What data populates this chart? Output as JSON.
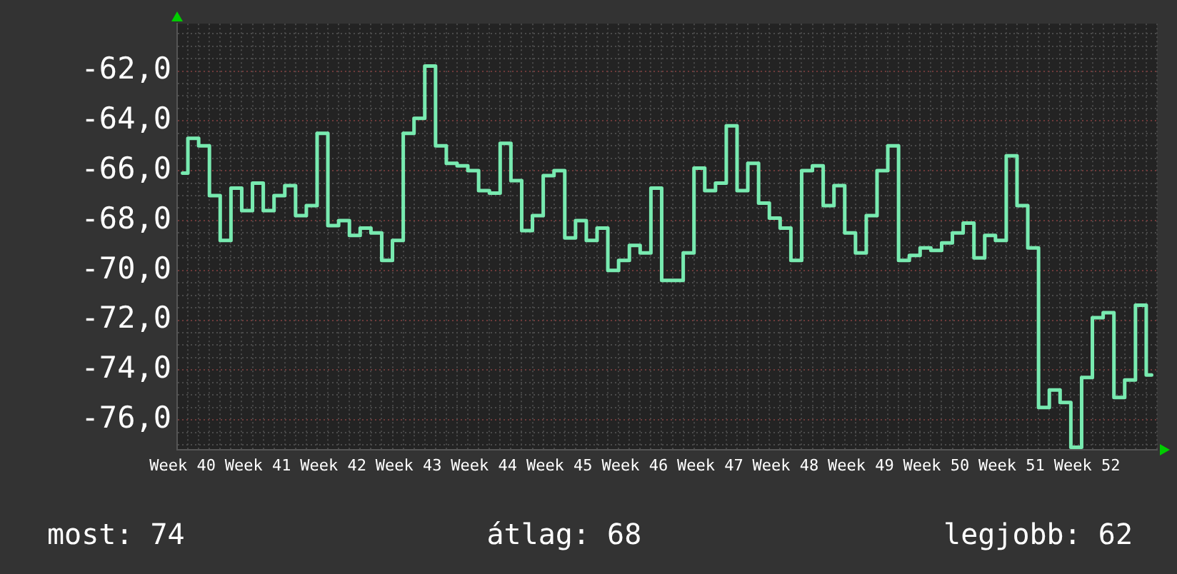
{
  "chart_data": {
    "type": "step",
    "categories": [
      "Week 40",
      null,
      null,
      null,
      null,
      null,
      null,
      "Week 41",
      null,
      null,
      null,
      null,
      null,
      null,
      "Week 42",
      null,
      null,
      null,
      null,
      null,
      null,
      "Week 43",
      null,
      null,
      null,
      null,
      null,
      null,
      "Week 44",
      null,
      null,
      null,
      null,
      null,
      null,
      "Week 45",
      null,
      null,
      null,
      null,
      null,
      null,
      "Week 46",
      null,
      null,
      null,
      null,
      null,
      null,
      "Week 47",
      null,
      null,
      null,
      null,
      null,
      null,
      "Week 48",
      null,
      null,
      null,
      null,
      null,
      null,
      "Week 49",
      null,
      null,
      null,
      null,
      null,
      null,
      "Week 50",
      null,
      null,
      null,
      null,
      null,
      null,
      "Week 51",
      null,
      null,
      null,
      null,
      null,
      null,
      "Week 52",
      null,
      null,
      null,
      null,
      null,
      null
    ],
    "values": [
      -66.1,
      -64.7,
      -65.0,
      -67.0,
      -68.8,
      -66.7,
      -67.6,
      -66.5,
      -67.6,
      -67.0,
      -66.6,
      -67.8,
      -67.4,
      -64.5,
      -68.2,
      -68.0,
      -68.6,
      -68.3,
      -68.5,
      -69.6,
      -68.8,
      -64.5,
      -63.9,
      -61.8,
      -65.0,
      -65.7,
      -65.8,
      -66.0,
      -66.8,
      -66.9,
      -64.9,
      -66.4,
      -68.4,
      -67.8,
      -66.2,
      -66.0,
      -68.7,
      -68.0,
      -68.8,
      -68.3,
      -70.0,
      -69.6,
      -69.0,
      -69.3,
      -66.7,
      -70.4,
      -70.4,
      -69.3,
      -65.9,
      -66.8,
      -66.5,
      -64.2,
      -66.8,
      -65.7,
      -67.3,
      -67.9,
      -68.3,
      -69.6,
      -66.0,
      -65.8,
      -67.4,
      -66.6,
      -68.5,
      -69.3,
      -67.8,
      -66.0,
      -65.0,
      -69.6,
      -69.4,
      -69.1,
      -69.2,
      -68.9,
      -68.5,
      -68.1,
      -69.5,
      -68.6,
      -68.8,
      -65.4,
      -67.4,
      -69.1,
      -75.5,
      -74.8,
      -75.3,
      -77.1,
      -74.3,
      -71.9,
      -71.7,
      -75.1,
      -74.4,
      -71.4,
      -74.2
    ],
    "color": "#78eab0",
    "ylim": [
      -77.2,
      -60.1
    ],
    "yticks": [
      {
        "value": -77,
        "label": null
      },
      {
        "value": -76.5,
        "label": null
      },
      {
        "value": -76,
        "label": "-76,0"
      },
      {
        "value": -75.5,
        "label": null
      },
      {
        "value": -75,
        "label": null
      },
      {
        "value": -74.5,
        "label": null
      },
      {
        "value": -74,
        "label": "-74,0"
      },
      {
        "value": -73.5,
        "label": null
      },
      {
        "value": -73,
        "label": null
      },
      {
        "value": -72.5,
        "label": null
      },
      {
        "value": -72,
        "label": "-72,0"
      },
      {
        "value": -71.5,
        "label": null
      },
      {
        "value": -71,
        "label": null
      },
      {
        "value": -70.5,
        "label": null
      },
      {
        "value": -70,
        "label": "-70,0"
      },
      {
        "value": -69.5,
        "label": null
      },
      {
        "value": -69,
        "label": null
      },
      {
        "value": -68.5,
        "label": null
      },
      {
        "value": -68,
        "label": "-68,0"
      },
      {
        "value": -67.5,
        "label": null
      },
      {
        "value": -67,
        "label": null
      },
      {
        "value": -66.5,
        "label": null
      },
      {
        "value": -66,
        "label": "-66,0"
      },
      {
        "value": -65.5,
        "label": null
      },
      {
        "value": -65,
        "label": null
      },
      {
        "value": -64.5,
        "label": null
      },
      {
        "value": -64,
        "label": "-64,0"
      },
      {
        "value": -63.5,
        "label": null
      },
      {
        "value": -63,
        "label": null
      },
      {
        "value": -62.5,
        "label": null
      },
      {
        "value": -62,
        "label": "-62,0"
      },
      {
        "value": -61.5,
        "label": null
      },
      {
        "value": -61,
        "label": null
      },
      {
        "value": -60.5,
        "label": null
      }
    ],
    "grid": true,
    "annotations": [
      "most: 74",
      "átlag: 68",
      "legjobb: 62"
    ]
  }
}
